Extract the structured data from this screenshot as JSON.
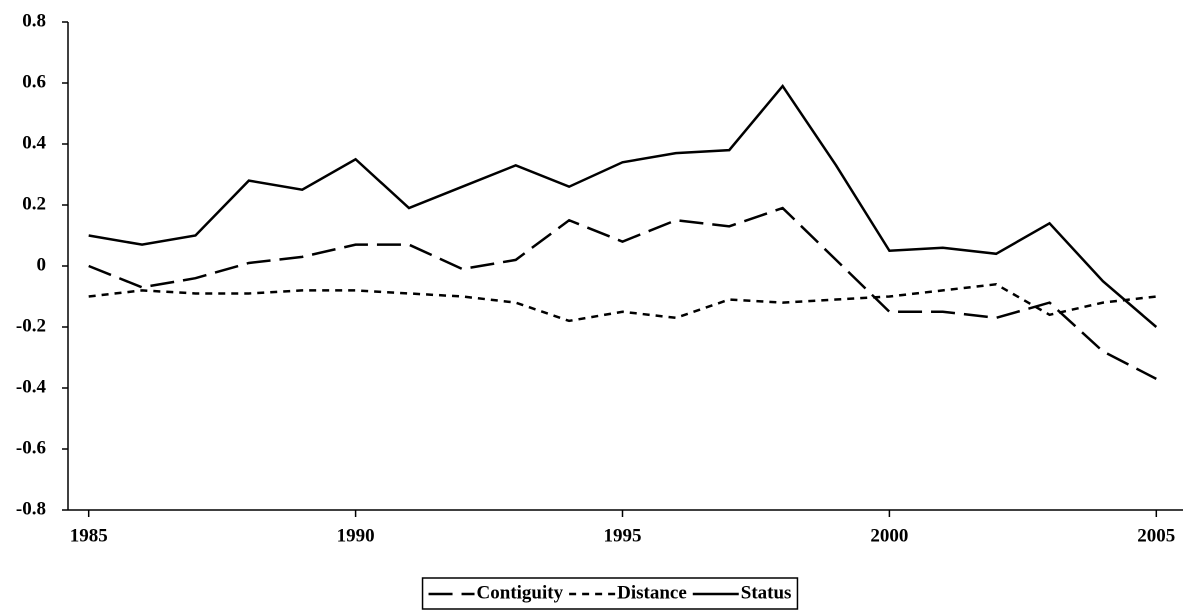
{
  "chart_data": {
    "type": "line",
    "x": [
      1985,
      1986,
      1987,
      1988,
      1989,
      1990,
      1991,
      1992,
      1993,
      1994,
      1995,
      1996,
      1997,
      1998,
      1999,
      2000,
      2001,
      2002,
      2003,
      2004,
      2005
    ],
    "series": [
      {
        "name": "Contiguity",
        "color": "#000000",
        "dash": "long",
        "values": [
          0.0,
          -0.07,
          -0.04,
          0.01,
          0.03,
          0.07,
          0.07,
          -0.01,
          0.02,
          0.15,
          0.08,
          0.15,
          0.13,
          0.19,
          0.02,
          -0.15,
          -0.15,
          -0.17,
          -0.12,
          -0.28,
          -0.37
        ]
      },
      {
        "name": "Distance",
        "color": "#000000",
        "dash": "short",
        "values": [
          -0.1,
          -0.08,
          -0.09,
          -0.09,
          -0.08,
          -0.08,
          -0.09,
          -0.1,
          -0.12,
          -0.18,
          -0.15,
          -0.17,
          -0.11,
          -0.12,
          -0.11,
          -0.1,
          -0.08,
          -0.06,
          -0.16,
          -0.12,
          -0.1
        ]
      },
      {
        "name": "Status",
        "color": "#000000",
        "dash": "solid",
        "values": [
          0.1,
          0.07,
          0.1,
          0.28,
          0.25,
          0.35,
          0.19,
          0.26,
          0.33,
          0.26,
          0.34,
          0.37,
          0.38,
          0.59,
          0.33,
          0.05,
          0.06,
          0.04,
          0.14,
          -0.05,
          -0.2
        ]
      }
    ],
    "xlim": [
      1984.5,
      2005.5
    ],
    "xticks": [
      1985,
      1990,
      1995,
      2000,
      2005
    ],
    "ylim": [
      -0.8,
      0.8
    ],
    "yticks": [
      -0.8,
      -0.6,
      -0.4,
      -0.2,
      0,
      0.2,
      0.4,
      0.6,
      0.8
    ],
    "grid": false,
    "legend": "bottom"
  }
}
